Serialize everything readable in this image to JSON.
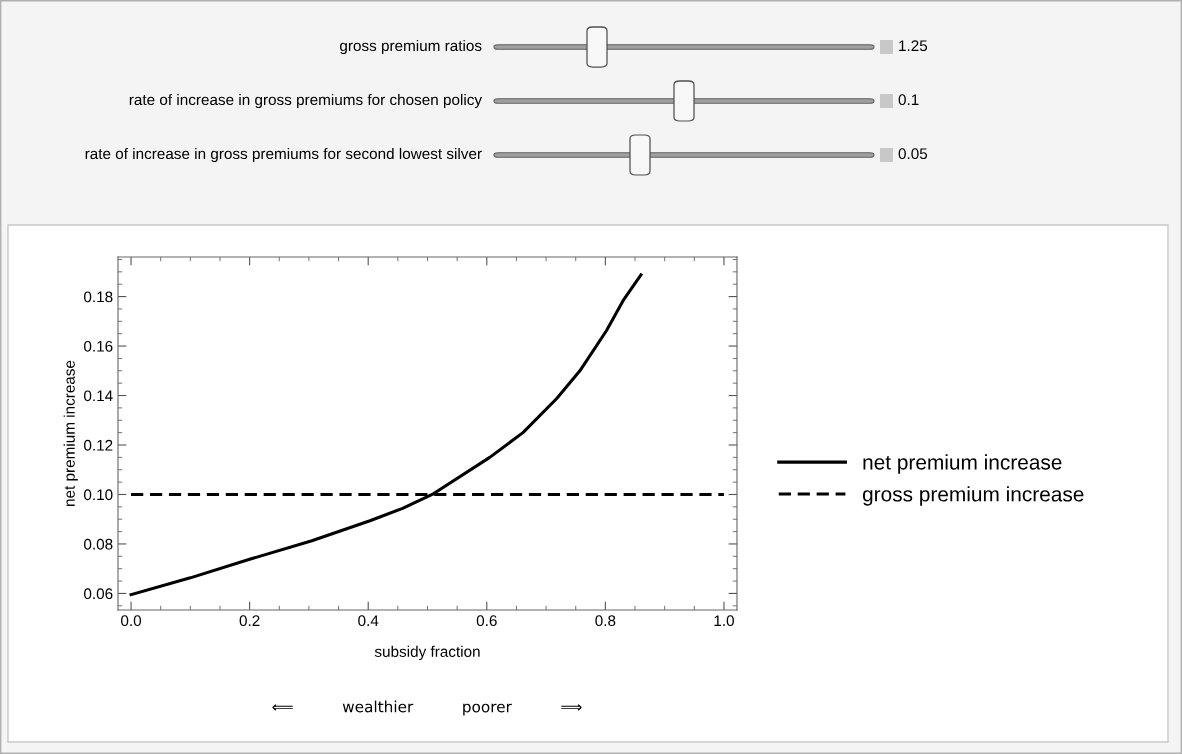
{
  "chart_data": {
    "type": "line",
    "xlabel": "subsidy fraction",
    "ylabel": "net premium increase",
    "annotations": [
      "⟸          wealthier          poorer          ⟹",
      "gross premium ratios",
      "1.25",
      "rate of increase in gross premiums for chosen policy",
      "0.1",
      "rate of increase in gross premiums for second lowest silver",
      "0.05"
    ],
    "series": [
      {
        "name": "net premium increase",
        "color": "#000000",
        "line_style": "solid",
        "x": [
          0,
          0.1,
          0.2,
          0.305,
          0.403,
          0.458,
          0.508,
          0.605,
          0.661,
          0.718,
          0.757,
          0.802,
          0.831,
          0.86
        ],
        "values": [
          0.0595,
          0.0663,
          0.0738,
          0.0813,
          0.0894,
          0.0944,
          0.1,
          0.115,
          0.125,
          0.1388,
          0.15,
          0.1663,
          0.1788,
          0.1888
        ]
      },
      {
        "name": "gross premium increase",
        "color": "#000000",
        "line_style": "dashed",
        "x": [
          0,
          1
        ],
        "values": [
          0.1,
          0.1
        ]
      }
    ],
    "xlim": [
      -0.022,
      1.022
    ],
    "ylim": [
      0.0533,
      0.196
    ],
    "xticks": [
      {
        "value": 0,
        "label": "0.0"
      },
      0.2,
      0.4,
      0.6,
      0.8,
      {
        "value": 1,
        "label": "1.0"
      }
    ],
    "yticks": [
      0.06,
      0.08,
      {
        "value": 0.1,
        "label": "0.10"
      },
      0.12,
      0.14,
      0.16,
      0.18
    ],
    "grid": false,
    "legend": "right",
    "marker": "none"
  }
}
